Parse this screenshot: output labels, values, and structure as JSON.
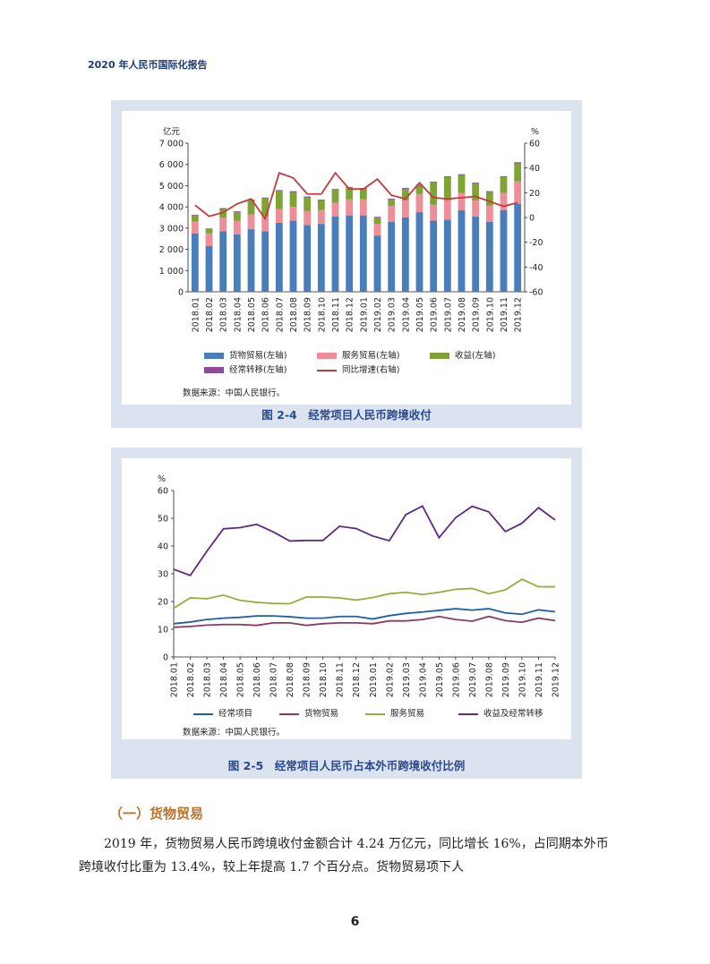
{
  "header": {
    "title": "2020 年人民币国际化报告"
  },
  "figures": [
    {
      "caption": "图 2-4　经常项目人民币跨境收付",
      "source": "数据来源：中国人民银行。",
      "chart_data": {
        "type": "bar",
        "stacked": true,
        "categories": [
          "2018.01",
          "2018.02",
          "2018.03",
          "2018.04",
          "2018.05",
          "2018.06",
          "2018.07",
          "2018.08",
          "2018.09",
          "2018.10",
          "2018.11",
          "2018.12",
          "2019.01",
          "2019.02",
          "2019.03",
          "2019.04",
          "2019.05",
          "2019.06",
          "2019.07",
          "2019.08",
          "2019.09",
          "2019.10",
          "2019.11",
          "2019.12"
        ],
        "left_axis": {
          "unit": "亿元",
          "min": 0,
          "max": 7000,
          "ticks": [
            "0",
            "1 000",
            "2 000",
            "3 000",
            "4 000",
            "5 000",
            "6 000",
            "7 000"
          ]
        },
        "right_axis": {
          "unit": "%",
          "min": -60,
          "max": 60,
          "ticks": [
            "-60",
            "-40",
            "-20",
            "0",
            "20",
            "40",
            "60"
          ]
        },
        "series": [
          {
            "name": "货物贸易(左轴)",
            "color": "#4a7ebb",
            "axis": "left",
            "values": [
              2750,
              2150,
              2850,
              2700,
              2950,
              2850,
              3250,
              3350,
              3150,
              3200,
              3550,
              3600,
              3600,
              2650,
              3300,
              3500,
              3750,
              3350,
              3400,
              3850,
              3550,
              3300,
              3850,
              4150
            ]
          },
          {
            "name": "服务贸易(左轴)",
            "color": "#ed8e98",
            "axis": "left",
            "values": [
              550,
              600,
              650,
              650,
              700,
              700,
              650,
              650,
              650,
              650,
              650,
              750,
              750,
              550,
              750,
              800,
              850,
              750,
              900,
              800,
              750,
              750,
              800,
              1050
            ]
          },
          {
            "name": "收益(左轴)",
            "color": "#7fa335",
            "axis": "left",
            "values": [
              300,
              200,
              400,
              400,
              650,
              850,
              850,
              700,
              650,
              450,
              600,
              550,
              500,
              300,
              300,
              550,
              400,
              1050,
              1100,
              850,
              800,
              650,
              750,
              850
            ]
          },
          {
            "name": "经常转移(左轴)",
            "color": "#8b4b9b",
            "axis": "left",
            "values": [
              30,
              30,
              40,
              40,
              40,
              40,
              40,
              40,
              40,
              40,
              40,
              40,
              40,
              30,
              40,
              40,
              40,
              40,
              40,
              40,
              40,
              40,
              40,
              50
            ]
          },
          {
            "name": "同比增速(右轴)",
            "color": "#c53a3a",
            "axis": "right",
            "type": "line",
            "values": [
              10,
              1,
              4,
              11,
              15,
              -1,
              36,
              32,
              19,
              19,
              36,
              23,
              23,
              31,
              18,
              15,
              28,
              16,
              15,
              16,
              17,
              13,
              9,
              12
            ]
          }
        ]
      }
    },
    {
      "caption": "图 2-5　经常项目人民币占本外币跨境收付比例",
      "source": "数据来源：中国人民银行。",
      "chart_data": {
        "type": "line",
        "categories": [
          "2018.01",
          "2018.02",
          "2018.03",
          "2018.04",
          "2018.05",
          "2018.06",
          "2018.07",
          "2018.08",
          "2018.09",
          "2018.10",
          "2018.11",
          "2018.12",
          "2019.01",
          "2019.02",
          "2019.03",
          "2019.04",
          "2019.05",
          "2019.06",
          "2019.07",
          "2019.08",
          "2019.09",
          "2019.10",
          "2019.11",
          "2019.12"
        ],
        "y_axis": {
          "unit": "%",
          "min": 0,
          "max": 60,
          "ticks": [
            "0",
            "10",
            "20",
            "30",
            "40",
            "50",
            "60"
          ]
        },
        "series": [
          {
            "name": "经常项目",
            "color": "#1f5fa8",
            "values": [
              12.0,
              12.6,
              13.5,
              14.0,
              14.3,
              14.8,
              14.8,
              14.5,
              14.0,
              14.0,
              14.6,
              14.6,
              13.7,
              14.9,
              15.7,
              16.2,
              16.8,
              17.4,
              16.9,
              17.4,
              15.9,
              15.4,
              17.0,
              16.3
            ]
          },
          {
            "name": "货物贸易",
            "color": "#8b3a62",
            "values": [
              10.7,
              11.0,
              11.5,
              11.7,
              11.7,
              11.4,
              12.3,
              12.3,
              11.4,
              12.0,
              12.3,
              12.3,
              12.0,
              13.0,
              13.0,
              13.5,
              14.6,
              13.5,
              12.9,
              14.6,
              13.1,
              12.5,
              14.0,
              13.1
            ]
          },
          {
            "name": "服务贸易",
            "color": "#8fb23e",
            "values": [
              17.6,
              21.3,
              21.0,
              22.3,
              20.4,
              19.7,
              19.3,
              19.2,
              21.6,
              21.6,
              21.3,
              20.5,
              21.4,
              22.8,
              23.3,
              22.5,
              23.3,
              24.4,
              24.7,
              22.8,
              24.2,
              28.0,
              25.3,
              25.3
            ]
          },
          {
            "name": "收益及经常转移",
            "color": "#5e2a84",
            "values": [
              31.6,
              29.4,
              38.1,
              46.2,
              46.6,
              47.8,
              45.1,
              41.8,
              42.0,
              42.0,
              47.1,
              46.3,
              43.6,
              41.9,
              51.3,
              54.4,
              43.0,
              50.2,
              54.3,
              52.3,
              45.2,
              48.2,
              53.8,
              49.4
            ]
          }
        ]
      }
    }
  ],
  "section": {
    "heading": "（一）货物贸易"
  },
  "body": {
    "paragraph": "2019 年，货物贸易人民币跨境收付金额合计 4.24 万亿元，同比增长 16%，占同期本外币跨境收付比重为 13.4%，较上年提高 1.7 个百分点。货物贸易项下人"
  },
  "page": {
    "number": "6"
  }
}
